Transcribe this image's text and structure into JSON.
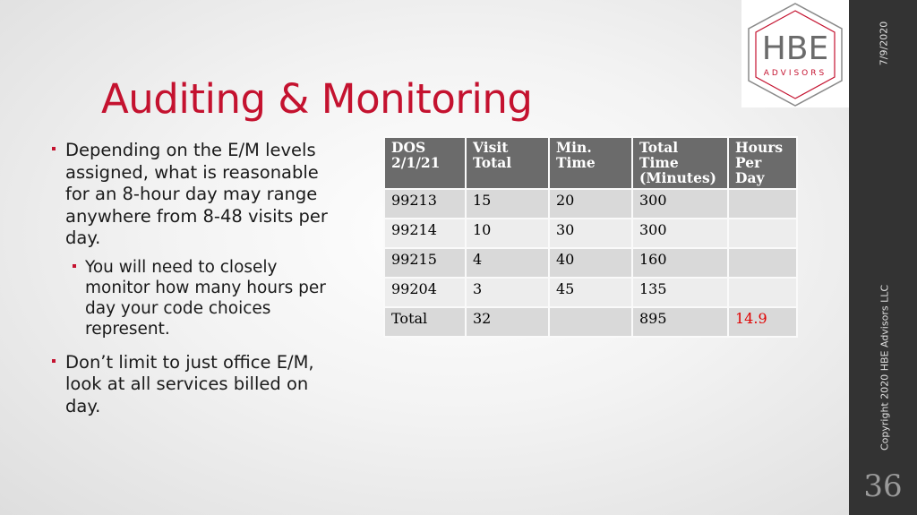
{
  "title": "Auditing & Monitoring",
  "bullets": [
    {
      "text": "Depending on the E/M levels assigned, what is reasonable for an 8-hour day may range anywhere from 8-48 visits per day.",
      "sub": [
        "You will need to closely monitor how many hours per day your code choices represent."
      ]
    },
    {
      "text": "Don’t limit to just office E/M, look at all services billed on day."
    }
  ],
  "table": {
    "header": [
      "DOS 2/1/21",
      "Visit Total",
      "Min. Time",
      "Total Time (Minutes)",
      "Hours Per Day"
    ],
    "rows": [
      [
        "99213",
        "15",
        "20",
        "300",
        null
      ],
      [
        "99214",
        "10",
        "30",
        "300",
        null
      ],
      [
        "99215",
        "4",
        "40",
        "160",
        null
      ],
      [
        "99204",
        "3",
        "45",
        "135",
        null
      ],
      [
        "Total",
        "32",
        null,
        "895",
        "14.9"
      ]
    ]
  },
  "logo": {
    "name": "HBE",
    "tagline": "ADVISORS"
  },
  "sidebar": {
    "date": "7/9/2020",
    "copyright": "Copyright 2020 HBE Advisors LLC",
    "page_number": "36"
  }
}
